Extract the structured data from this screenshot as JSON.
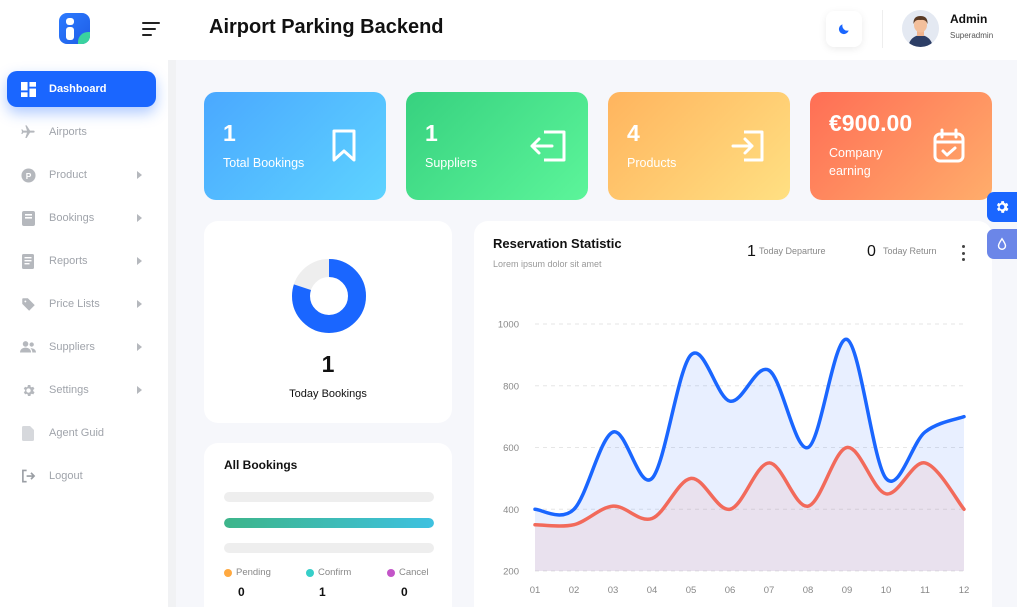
{
  "app": {
    "title": "Airport Parking Backend"
  },
  "user": {
    "name": "Admin",
    "role": "Superadmin"
  },
  "sidebar": {
    "items": [
      {
        "label": "Dashboard",
        "icon": "dashboard-icon",
        "active": true,
        "has_caret": false
      },
      {
        "label": "Airports",
        "icon": "plane-icon",
        "active": false,
        "has_caret": false
      },
      {
        "label": "Product",
        "icon": "product-p-icon",
        "active": false,
        "has_caret": true
      },
      {
        "label": "Bookings",
        "icon": "book-icon",
        "active": false,
        "has_caret": true
      },
      {
        "label": "Reports",
        "icon": "report-icon",
        "active": false,
        "has_caret": true
      },
      {
        "label": "Price Lists",
        "icon": "tag-icon",
        "active": false,
        "has_caret": true
      },
      {
        "label": "Suppliers",
        "icon": "users-icon",
        "active": false,
        "has_caret": true
      },
      {
        "label": "Settings",
        "icon": "gear-icon",
        "active": false,
        "has_caret": true
      },
      {
        "label": "Agent Guid",
        "icon": "document-icon",
        "active": false,
        "has_caret": false
      },
      {
        "label": "Logout",
        "icon": "logout-icon",
        "active": false,
        "has_caret": false
      }
    ]
  },
  "stats": [
    {
      "value": "1",
      "label": "Total Bookings",
      "icon": "bookmark-icon",
      "gradient": [
        "#4aa8ff",
        "#5ed3ff"
      ]
    },
    {
      "value": "1",
      "label": "Suppliers",
      "icon": "logout-box-icon",
      "gradient": [
        "#37d17f",
        "#5cf59a"
      ]
    },
    {
      "value": "4",
      "label": "Products",
      "icon": "login-box-icon",
      "gradient": [
        "#ffb45e",
        "#ffe082"
      ]
    },
    {
      "value": "€900.00",
      "label": "Company earning",
      "icon": "calendar-check-icon",
      "gradient": [
        "#ff6e55",
        "#ffad6b"
      ]
    }
  ],
  "today": {
    "value": "1",
    "label": "Today Bookings",
    "donut_fraction": 0.8,
    "color": "#1a66ff"
  },
  "all_bookings": {
    "title": "All Bookings",
    "bars": [
      {
        "fraction": 0.0,
        "color": "#eeeeee"
      },
      {
        "fraction": 1.0,
        "color": "#3ec1e0"
      },
      {
        "fraction": 0.0,
        "color": "#eeeeee"
      }
    ],
    "legend": [
      {
        "label": "Pending",
        "count": "0",
        "color": "#ffa940"
      },
      {
        "label": "Confirm",
        "count": "1",
        "color": "#36cfc9"
      },
      {
        "label": "Cancel",
        "count": "0",
        "color": "#c355c8"
      }
    ]
  },
  "reservation": {
    "title": "Reservation Statistic",
    "subtitle": "Lorem ipsum dolor sit amet",
    "departure": {
      "count": "1",
      "label": "Today Departure"
    },
    "return": {
      "count": "0",
      "label": "Today Return"
    }
  },
  "colors": {
    "accent": "#1a66ff",
    "series_blue": "#1a66ff",
    "series_red": "#f26a5b"
  },
  "chart_data": {
    "type": "area",
    "title": "Reservation Statistic",
    "x": [
      "01",
      "02",
      "03",
      "04",
      "05",
      "06",
      "07",
      "08",
      "09",
      "10",
      "11",
      "12"
    ],
    "ylim": [
      200,
      1000
    ],
    "yticks": [
      200,
      400,
      600,
      800,
      1000
    ],
    "grid": true,
    "series": [
      {
        "color": "#1a66ff",
        "values": [
          400,
          400,
          650,
          500,
          900,
          750,
          850,
          600,
          950,
          500,
          650,
          700
        ]
      },
      {
        "color": "#f26a5b",
        "values": [
          350,
          350,
          410,
          370,
          500,
          400,
          550,
          410,
          600,
          450,
          550,
          400
        ]
      }
    ]
  }
}
